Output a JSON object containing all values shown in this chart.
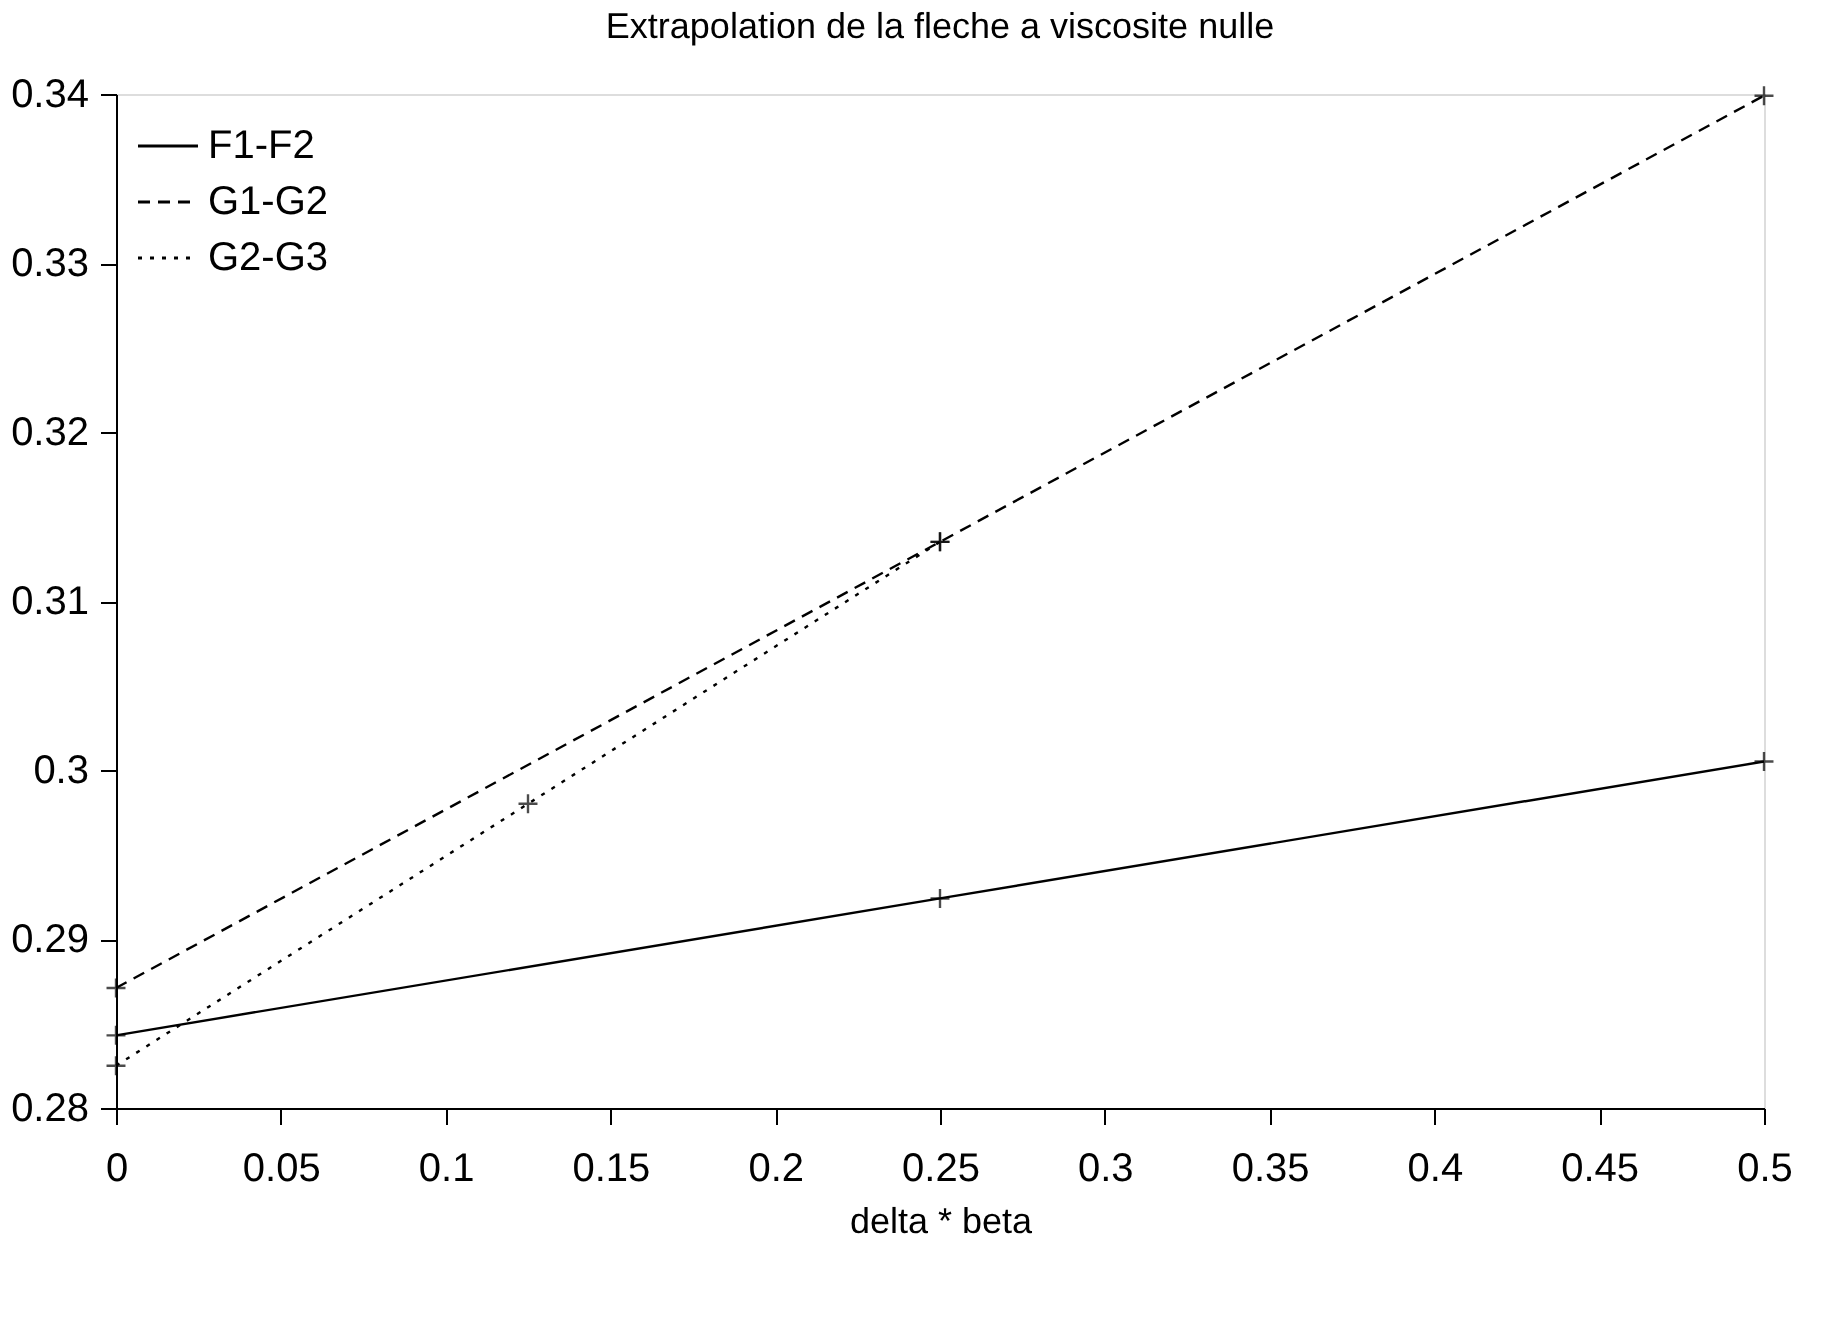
{
  "chart_data": {
    "type": "line",
    "title": "Extrapolation de la fleche a viscosite nulle",
    "xlabel": "delta * beta",
    "series": [
      {
        "name": "F1-F2",
        "color": "#000000",
        "x": [
          0,
          0.25,
          0.5
        ],
        "values": [
          0.2843,
          0.2924,
          0.3005
        ],
        "marker": "cross",
        "line_style": "solid"
      },
      {
        "name": "G1-G2",
        "color": "#000000",
        "x": [
          0,
          0.25,
          0.5
        ],
        "values": [
          0.2871,
          0.3135,
          0.3399
        ],
        "marker": "cross",
        "line_style": "dashed"
      },
      {
        "name": "G2-G3",
        "color": "#000000",
        "x": [
          0,
          0.125,
          0.25
        ],
        "values": [
          0.2825,
          0.298,
          0.3135
        ],
        "marker": "cross",
        "line_style": "dotted"
      }
    ],
    "xlim": [
      0,
      0.5
    ],
    "xticks": [
      0,
      0.05,
      0.1,
      0.15,
      0.2,
      0.25,
      0.3,
      0.35,
      0.4,
      0.45,
      0.5
    ],
    "ylim": [
      0.28,
      0.34
    ],
    "yticks": [
      0.28,
      0.29,
      0.3,
      0.31,
      0.32,
      0.33,
      0.34
    ],
    "grid": false,
    "legend": "top left"
  }
}
